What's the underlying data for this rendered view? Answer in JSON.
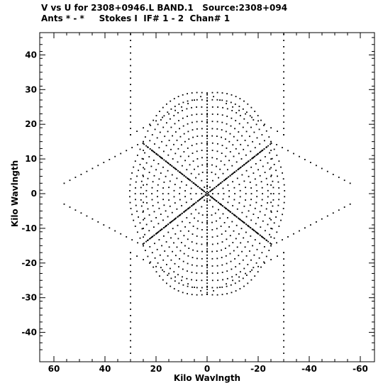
{
  "header": {
    "line1": "V vs U for 2308+0946.L BAND.1   Source:2308+094",
    "line2": "Ants * - *     Stokes I  IF# 1 - 2  Chan# 1"
  },
  "chart_data": {
    "type": "scatter",
    "title": "V vs U for 2308+0946.L BAND.1   Source:2308+094",
    "subtitle": "Ants * - *     Stokes I  IF# 1 - 2  Chan# 1",
    "xlabel": "Kilo Wavlngth",
    "ylabel": "Kilo Wavlngth",
    "xlim": [
      64,
      -64
    ],
    "ylim": [
      -48,
      48
    ],
    "x_reversed": true,
    "grid": false,
    "xticks": [
      60,
      40,
      20,
      0,
      -20,
      -40,
      -60
    ],
    "xtick_labels": [
      "60",
      "40",
      "20",
      "0",
      "-20",
      "-40",
      "-60"
    ],
    "yticks": [
      40,
      30,
      20,
      10,
      0,
      -10,
      -20,
      -30,
      -40
    ],
    "ytick_labels": [
      "40",
      "30",
      "20",
      "10",
      "0",
      "-10",
      "-20",
      "-30",
      "-40"
    ],
    "pattern": {
      "description_free": true,
      "arm_angles_deg": [
        90,
        30,
        -30,
        -90,
        -150,
        150
      ],
      "arm_max_radius": 29,
      "rings": 14,
      "outer_segments": [
        {
          "from": [
            30,
            17
          ],
          "to": [
            30,
            46
          ]
        },
        {
          "from": [
            -30,
            17
          ],
          "to": [
            -30,
            46
          ]
        },
        {
          "from": [
            30,
            -17
          ],
          "to": [
            30,
            -46
          ]
        },
        {
          "from": [
            -30,
            -17
          ],
          "to": [
            -30,
            -46
          ]
        },
        {
          "from": [
            25,
            15
          ],
          "to": [
            56,
            3
          ]
        },
        {
          "from": [
            -25,
            15
          ],
          "to": [
            -56,
            3
          ]
        },
        {
          "from": [
            25,
            -15
          ],
          "to": [
            56,
            -3
          ]
        },
        {
          "from": [
            -25,
            -15
          ],
          "to": [
            -56,
            -3
          ]
        }
      ]
    }
  }
}
